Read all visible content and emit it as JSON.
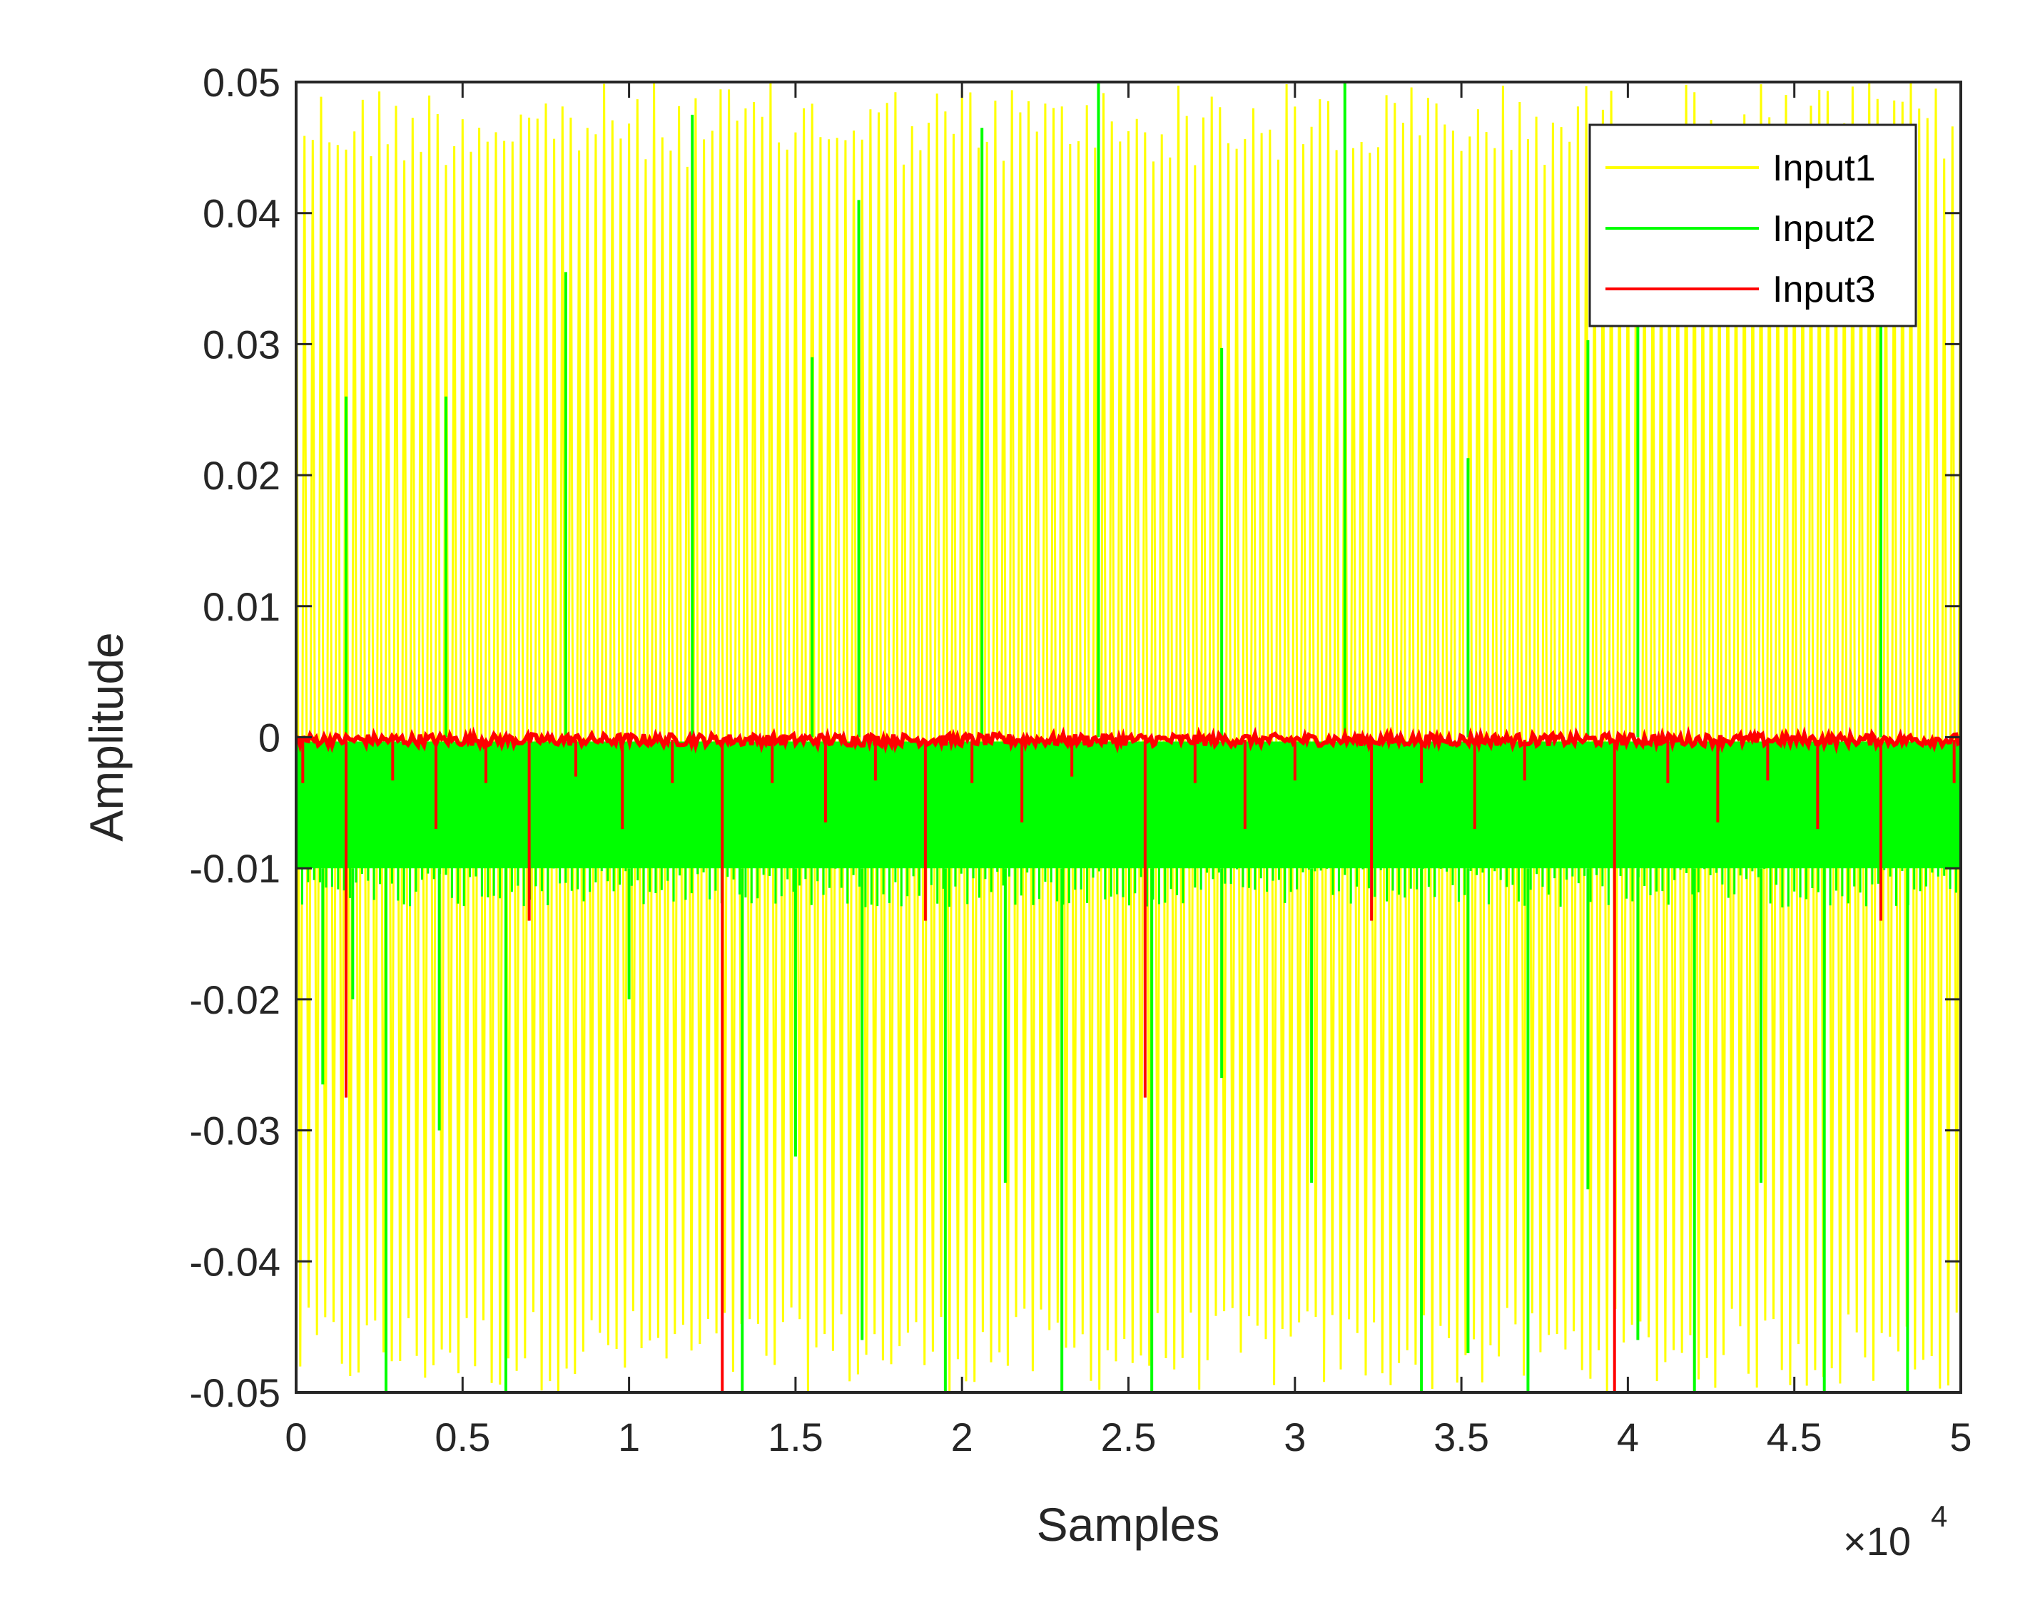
{
  "chart_data": {
    "type": "line",
    "title": "",
    "xlabel": "Samples",
    "ylabel": "Amplitude",
    "xlim": [
      0,
      50000
    ],
    "ylim": [
      -0.05,
      0.05
    ],
    "x_exponent_base": "×10",
    "x_exponent_power": "4",
    "xticks": [
      0,
      5000,
      10000,
      15000,
      20000,
      25000,
      30000,
      35000,
      40000,
      45000,
      50000
    ],
    "xtick_labels": [
      "0",
      "0.5",
      "1",
      "1.5",
      "2",
      "2.5",
      "3",
      "3.5",
      "4",
      "4.5",
      "5"
    ],
    "yticks": [
      -0.05,
      -0.04,
      -0.03,
      -0.02,
      -0.01,
      0,
      0.01,
      0.02,
      0.03,
      0.04,
      0.05
    ],
    "ytick_labels": [
      "-0.05",
      "-0.04",
      "-0.03",
      "-0.02",
      "-0.01",
      "0",
      "0.01",
      "0.02",
      "0.03",
      "0.04",
      "0.05"
    ],
    "grid": false,
    "legend_position": "top-right",
    "series": [
      {
        "name": "Input1",
        "color": "#ffff00",
        "description_values": {
          "min": -0.05,
          "max": 0.05,
          "period_samples": 250
        }
      },
      {
        "name": "Input2",
        "color": "#00ff00",
        "band": [
          -0.01,
          0
        ],
        "positive_spikes": [
          [
            1500,
            0.026
          ],
          [
            4500,
            0.026
          ],
          [
            8100,
            0.0355
          ],
          [
            11900,
            0.0475
          ],
          [
            15500,
            0.029
          ],
          [
            16900,
            0.041
          ],
          [
            20600,
            0.0465
          ],
          [
            24100,
            0.05
          ],
          [
            27800,
            0.0297
          ],
          [
            31500,
            0.05
          ],
          [
            35200,
            0.0213
          ],
          [
            38800,
            0.0303
          ],
          [
            40300,
            0.0375
          ],
          [
            47600,
            0.0315
          ]
        ],
        "negative_spikes": [
          [
            800,
            -0.0265
          ],
          [
            1700,
            -0.02
          ],
          [
            2700,
            -0.05
          ],
          [
            4300,
            -0.03
          ],
          [
            6300,
            -0.05
          ],
          [
            10000,
            -0.02
          ],
          [
            13400,
            -0.05
          ],
          [
            15000,
            -0.032
          ],
          [
            17000,
            -0.046
          ],
          [
            19500,
            -0.05
          ],
          [
            21300,
            -0.034
          ],
          [
            23000,
            -0.05
          ],
          [
            25700,
            -0.05
          ],
          [
            27800,
            -0.026
          ],
          [
            30500,
            -0.034
          ],
          [
            33800,
            -0.05
          ],
          [
            35200,
            -0.047
          ],
          [
            37000,
            -0.05
          ],
          [
            38800,
            -0.0345
          ],
          [
            40300,
            -0.046
          ],
          [
            42000,
            -0.05
          ],
          [
            44000,
            -0.034
          ],
          [
            45900,
            -0.05
          ],
          [
            48400,
            -0.05
          ]
        ]
      },
      {
        "name": "Input3",
        "color": "#ff0000",
        "baseline": -0.0002,
        "spikes": [
          [
            200,
            -0.0035
          ],
          [
            1500,
            -0.0275
          ],
          [
            2900,
            -0.0033
          ],
          [
            4200,
            -0.007
          ],
          [
            5700,
            -0.0035
          ],
          [
            7000,
            -0.014
          ],
          [
            8400,
            -0.003
          ],
          [
            9800,
            -0.007
          ],
          [
            11300,
            -0.0035
          ],
          [
            12800,
            -0.05
          ],
          [
            14300,
            -0.0035
          ],
          [
            15900,
            -0.0065
          ],
          [
            17400,
            -0.0033
          ],
          [
            18900,
            -0.014
          ],
          [
            20300,
            -0.0035
          ],
          [
            21800,
            -0.0065
          ],
          [
            23300,
            -0.003
          ],
          [
            25500,
            -0.0275
          ],
          [
            27000,
            -0.0035
          ],
          [
            28500,
            -0.007
          ],
          [
            30000,
            -0.0033
          ],
          [
            32300,
            -0.014
          ],
          [
            33800,
            -0.0035
          ],
          [
            35400,
            -0.007
          ],
          [
            36900,
            -0.0033
          ],
          [
            39600,
            -0.05
          ],
          [
            41200,
            -0.0035
          ],
          [
            42700,
            -0.0065
          ],
          [
            44200,
            -0.0033
          ],
          [
            45700,
            -0.007
          ],
          [
            47600,
            -0.014
          ],
          [
            49800,
            -0.0035
          ]
        ]
      }
    ]
  }
}
